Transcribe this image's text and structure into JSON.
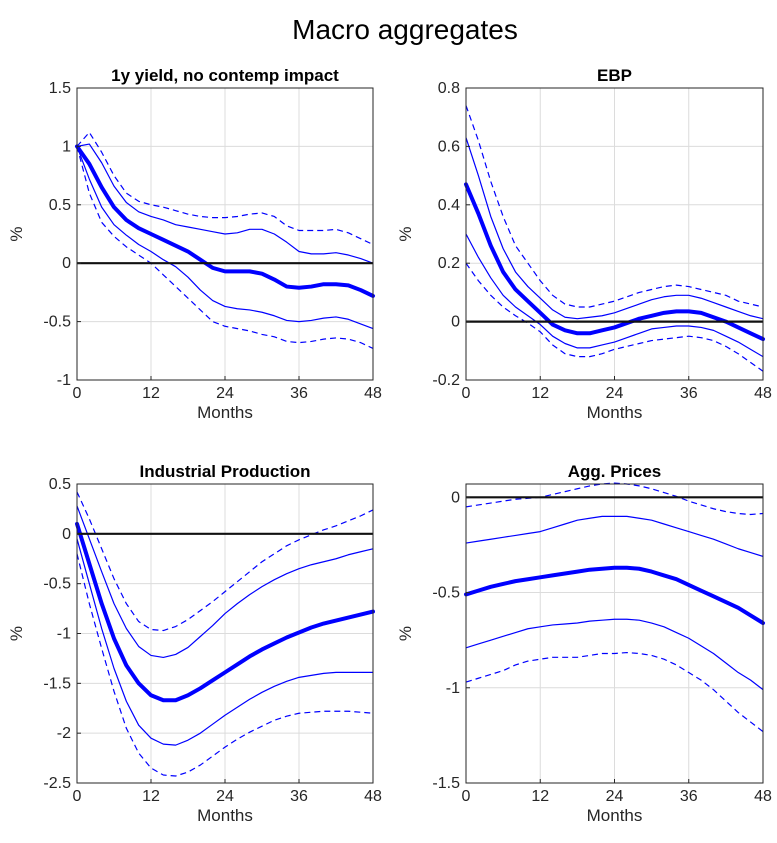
{
  "figure": {
    "title": "Macro aggregates"
  },
  "chart_data": [
    {
      "type": "line",
      "title": "1y yield, no contemp impact",
      "xlabel": "Months",
      "ylabel": "%",
      "xlim": [
        0,
        48
      ],
      "ylim": [
        -1,
        1.5
      ],
      "xticks": [
        0,
        12,
        24,
        36,
        48
      ],
      "yticks": [
        -1,
        -0.5,
        0,
        0.5,
        1,
        1.5
      ],
      "ytick_labels": [
        "-1",
        "-0.5",
        "0",
        "0.5",
        "1",
        "1.5"
      ],
      "grid": true,
      "zero_line": true,
      "x": [
        0,
        2,
        4,
        6,
        8,
        10,
        12,
        14,
        16,
        18,
        20,
        22,
        24,
        26,
        28,
        30,
        32,
        34,
        36,
        38,
        40,
        42,
        44,
        46,
        48
      ],
      "series": [
        {
          "role": "upper-outer",
          "values": [
            1.0,
            1.12,
            0.95,
            0.75,
            0.6,
            0.53,
            0.5,
            0.48,
            0.45,
            0.42,
            0.4,
            0.39,
            0.39,
            0.4,
            0.42,
            0.43,
            0.4,
            0.32,
            0.28,
            0.28,
            0.28,
            0.29,
            0.26,
            0.21,
            0.16
          ]
        },
        {
          "role": "upper-inner",
          "values": [
            1.0,
            1.02,
            0.86,
            0.66,
            0.52,
            0.44,
            0.4,
            0.37,
            0.33,
            0.31,
            0.29,
            0.27,
            0.25,
            0.26,
            0.29,
            0.29,
            0.25,
            0.18,
            0.1,
            0.08,
            0.08,
            0.09,
            0.07,
            0.04,
            0.0
          ]
        },
        {
          "role": "median",
          "values": [
            1.0,
            0.85,
            0.65,
            0.48,
            0.37,
            0.3,
            0.25,
            0.2,
            0.15,
            0.1,
            0.03,
            -0.04,
            -0.07,
            -0.07,
            -0.07,
            -0.09,
            -0.14,
            -0.2,
            -0.21,
            -0.2,
            -0.18,
            -0.18,
            -0.19,
            -0.23,
            -0.28
          ]
        },
        {
          "role": "lower-inner",
          "values": [
            1.0,
            0.72,
            0.48,
            0.33,
            0.24,
            0.16,
            0.1,
            0.03,
            -0.03,
            -0.12,
            -0.23,
            -0.32,
            -0.37,
            -0.39,
            -0.4,
            -0.42,
            -0.45,
            -0.49,
            -0.5,
            -0.49,
            -0.47,
            -0.46,
            -0.48,
            -0.52,
            -0.56
          ]
        },
        {
          "role": "lower-outer",
          "values": [
            1.0,
            0.6,
            0.35,
            0.23,
            0.14,
            0.07,
            0.0,
            -0.1,
            -0.2,
            -0.3,
            -0.4,
            -0.5,
            -0.54,
            -0.56,
            -0.58,
            -0.61,
            -0.63,
            -0.67,
            -0.68,
            -0.67,
            -0.65,
            -0.64,
            -0.65,
            -0.68,
            -0.73
          ]
        }
      ]
    },
    {
      "type": "line",
      "title": "EBP",
      "xlabel": "Months",
      "ylabel": "%",
      "xlim": [
        0,
        48
      ],
      "ylim": [
        -0.2,
        0.8
      ],
      "xticks": [
        0,
        12,
        24,
        36,
        48
      ],
      "yticks": [
        -0.2,
        0,
        0.2,
        0.4,
        0.6,
        0.8
      ],
      "ytick_labels": [
        "-0.2",
        "0",
        "0.2",
        "0.4",
        "0.6",
        "0.8"
      ],
      "grid": true,
      "zero_line": true,
      "x": [
        0,
        2,
        4,
        6,
        8,
        10,
        12,
        14,
        16,
        18,
        20,
        22,
        24,
        26,
        28,
        30,
        32,
        34,
        36,
        38,
        40,
        42,
        44,
        46,
        48
      ],
      "series": [
        {
          "role": "upper-outer",
          "values": [
            0.74,
            0.62,
            0.48,
            0.36,
            0.26,
            0.2,
            0.14,
            0.09,
            0.06,
            0.05,
            0.05,
            0.06,
            0.07,
            0.085,
            0.1,
            0.11,
            0.12,
            0.125,
            0.12,
            0.11,
            0.1,
            0.09,
            0.07,
            0.06,
            0.05
          ]
        },
        {
          "role": "upper-inner",
          "values": [
            0.63,
            0.5,
            0.36,
            0.25,
            0.17,
            0.12,
            0.08,
            0.04,
            0.015,
            0.01,
            0.015,
            0.02,
            0.03,
            0.045,
            0.06,
            0.075,
            0.085,
            0.09,
            0.09,
            0.08,
            0.065,
            0.05,
            0.035,
            0.02,
            0.01
          ]
        },
        {
          "role": "median",
          "values": [
            0.47,
            0.37,
            0.26,
            0.17,
            0.11,
            0.07,
            0.03,
            -0.01,
            -0.03,
            -0.04,
            -0.04,
            -0.03,
            -0.02,
            -0.005,
            0.01,
            0.02,
            0.03,
            0.035,
            0.035,
            0.03,
            0.015,
            0.0,
            -0.02,
            -0.04,
            -0.06
          ]
        },
        {
          "role": "lower-inner",
          "values": [
            0.3,
            0.22,
            0.15,
            0.09,
            0.05,
            0.02,
            -0.01,
            -0.05,
            -0.075,
            -0.09,
            -0.09,
            -0.08,
            -0.07,
            -0.055,
            -0.04,
            -0.025,
            -0.02,
            -0.015,
            -0.015,
            -0.02,
            -0.03,
            -0.05,
            -0.07,
            -0.095,
            -0.12
          ]
        },
        {
          "role": "lower-outer",
          "values": [
            0.2,
            0.14,
            0.09,
            0.05,
            0.02,
            -0.005,
            -0.035,
            -0.08,
            -0.11,
            -0.12,
            -0.12,
            -0.11,
            -0.095,
            -0.085,
            -0.075,
            -0.065,
            -0.06,
            -0.055,
            -0.05,
            -0.055,
            -0.065,
            -0.085,
            -0.11,
            -0.14,
            -0.17
          ]
        }
      ]
    },
    {
      "type": "line",
      "title": "Industrial Production",
      "xlabel": "Months",
      "ylabel": "%",
      "xlim": [
        0,
        48
      ],
      "ylim": [
        -2.5,
        0.5
      ],
      "xticks": [
        0,
        12,
        24,
        36,
        48
      ],
      "yticks": [
        -2.5,
        -2,
        -1.5,
        -1,
        -0.5,
        0,
        0.5
      ],
      "ytick_labels": [
        "-2.5",
        "-2",
        "-1.5",
        "-1",
        "-0.5",
        "0",
        "0.5"
      ],
      "grid": true,
      "zero_line": true,
      "x": [
        0,
        2,
        4,
        6,
        8,
        10,
        12,
        14,
        16,
        18,
        20,
        22,
        24,
        26,
        28,
        30,
        32,
        34,
        36,
        38,
        40,
        42,
        44,
        46,
        48
      ],
      "series": [
        {
          "role": "upper-outer",
          "values": [
            0.42,
            0.15,
            -0.15,
            -0.45,
            -0.7,
            -0.88,
            -0.96,
            -0.97,
            -0.93,
            -0.86,
            -0.77,
            -0.68,
            -0.58,
            -0.48,
            -0.38,
            -0.28,
            -0.2,
            -0.12,
            -0.06,
            -0.01,
            0.04,
            0.08,
            0.13,
            0.18,
            0.24
          ]
        },
        {
          "role": "upper-inner",
          "values": [
            0.28,
            -0.05,
            -0.38,
            -0.7,
            -0.95,
            -1.13,
            -1.22,
            -1.24,
            -1.21,
            -1.14,
            -1.03,
            -0.92,
            -0.8,
            -0.7,
            -0.61,
            -0.53,
            -0.46,
            -0.4,
            -0.35,
            -0.31,
            -0.28,
            -0.25,
            -0.21,
            -0.18,
            -0.15
          ]
        },
        {
          "role": "median",
          "values": [
            0.1,
            -0.3,
            -0.7,
            -1.05,
            -1.32,
            -1.5,
            -1.62,
            -1.67,
            -1.67,
            -1.62,
            -1.55,
            -1.47,
            -1.39,
            -1.31,
            -1.23,
            -1.16,
            -1.1,
            -1.04,
            -0.99,
            -0.94,
            -0.9,
            -0.87,
            -0.84,
            -0.81,
            -0.78
          ]
        },
        {
          "role": "lower-inner",
          "values": [
            -0.05,
            -0.5,
            -0.95,
            -1.35,
            -1.68,
            -1.92,
            -2.05,
            -2.11,
            -2.12,
            -2.07,
            -2.0,
            -1.91,
            -1.82,
            -1.74,
            -1.66,
            -1.59,
            -1.53,
            -1.48,
            -1.44,
            -1.42,
            -1.4,
            -1.39,
            -1.39,
            -1.39,
            -1.39
          ]
        },
        {
          "role": "lower-outer",
          "values": [
            -0.2,
            -0.7,
            -1.15,
            -1.58,
            -1.95,
            -2.2,
            -2.35,
            -2.42,
            -2.43,
            -2.39,
            -2.32,
            -2.23,
            -2.14,
            -2.06,
            -1.99,
            -1.93,
            -1.87,
            -1.83,
            -1.8,
            -1.79,
            -1.78,
            -1.78,
            -1.78,
            -1.79,
            -1.8
          ]
        }
      ]
    },
    {
      "type": "line",
      "title": "Agg. Prices",
      "xlabel": "Months",
      "ylabel": "%",
      "xlim": [
        0,
        48
      ],
      "ylim": [
        -1.5,
        0.07
      ],
      "xticks": [
        0,
        12,
        24,
        36,
        48
      ],
      "yticks": [
        -1.5,
        -1,
        -0.5,
        0
      ],
      "ytick_labels": [
        "-1.5",
        "-1",
        "-0.5",
        "0"
      ],
      "grid": true,
      "zero_line": true,
      "x": [
        0,
        2,
        4,
        6,
        8,
        10,
        12,
        14,
        16,
        18,
        20,
        22,
        24,
        26,
        28,
        30,
        32,
        34,
        36,
        38,
        40,
        42,
        44,
        46,
        48
      ],
      "series": [
        {
          "role": "upper-outer",
          "values": [
            -0.05,
            -0.04,
            -0.03,
            -0.02,
            -0.01,
            -0.005,
            0.0,
            0.015,
            0.03,
            0.045,
            0.06,
            0.07,
            0.075,
            0.07,
            0.06,
            0.045,
            0.025,
            0.005,
            -0.02,
            -0.04,
            -0.06,
            -0.075,
            -0.085,
            -0.09,
            -0.085
          ]
        },
        {
          "role": "upper-inner",
          "values": [
            -0.24,
            -0.23,
            -0.22,
            -0.21,
            -0.2,
            -0.19,
            -0.18,
            -0.16,
            -0.14,
            -0.12,
            -0.11,
            -0.1,
            -0.1,
            -0.1,
            -0.11,
            -0.12,
            -0.14,
            -0.16,
            -0.18,
            -0.2,
            -0.22,
            -0.245,
            -0.27,
            -0.29,
            -0.31
          ]
        },
        {
          "role": "median",
          "values": [
            -0.51,
            -0.49,
            -0.47,
            -0.455,
            -0.44,
            -0.43,
            -0.42,
            -0.41,
            -0.4,
            -0.39,
            -0.38,
            -0.375,
            -0.37,
            -0.37,
            -0.375,
            -0.39,
            -0.41,
            -0.43,
            -0.46,
            -0.49,
            -0.52,
            -0.55,
            -0.58,
            -0.62,
            -0.66
          ]
        },
        {
          "role": "lower-inner",
          "values": [
            -0.79,
            -0.77,
            -0.75,
            -0.73,
            -0.71,
            -0.69,
            -0.68,
            -0.67,
            -0.665,
            -0.66,
            -0.65,
            -0.645,
            -0.64,
            -0.64,
            -0.645,
            -0.66,
            -0.68,
            -0.71,
            -0.74,
            -0.78,
            -0.82,
            -0.87,
            -0.92,
            -0.96,
            -1.01
          ]
        },
        {
          "role": "lower-outer",
          "values": [
            -0.97,
            -0.95,
            -0.93,
            -0.91,
            -0.88,
            -0.86,
            -0.85,
            -0.84,
            -0.84,
            -0.84,
            -0.83,
            -0.82,
            -0.82,
            -0.815,
            -0.82,
            -0.83,
            -0.85,
            -0.88,
            -0.92,
            -0.96,
            -1.01,
            -1.07,
            -1.13,
            -1.18,
            -1.23
          ]
        }
      ]
    }
  ]
}
